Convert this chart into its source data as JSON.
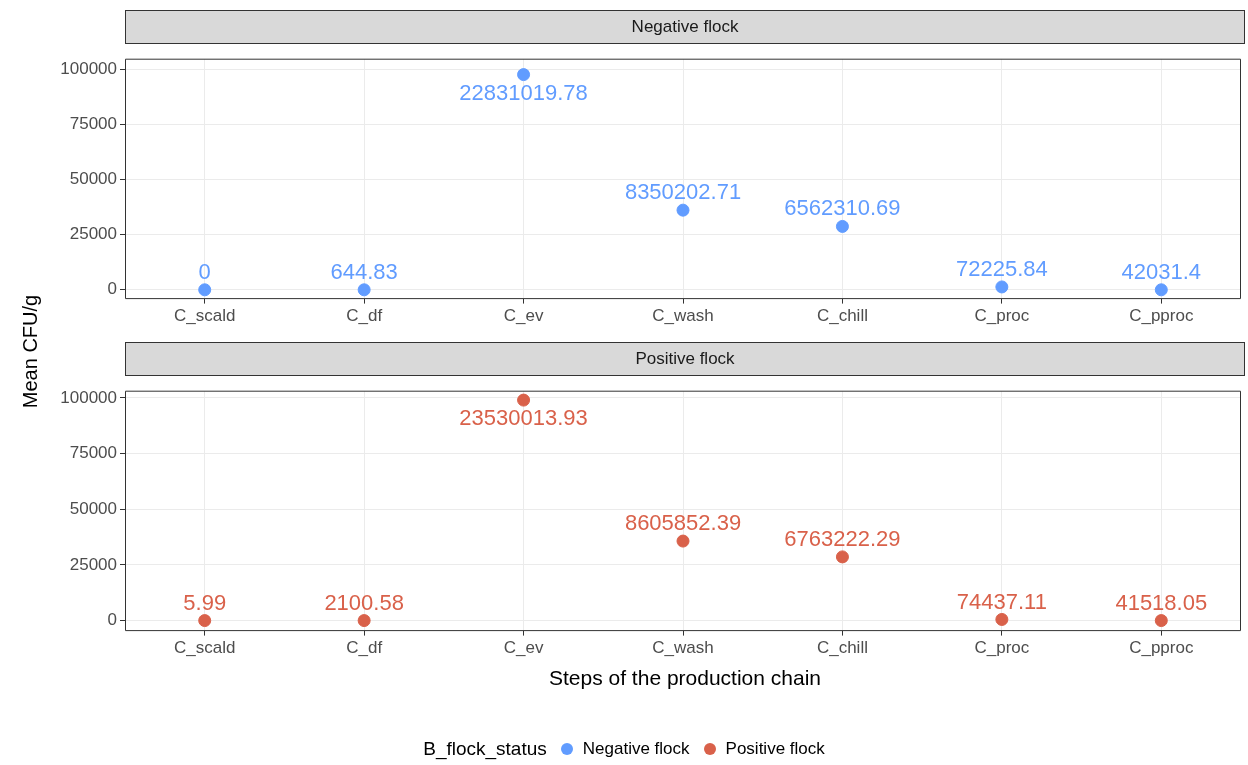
{
  "chart_data": [
    {
      "type": "scatter",
      "title": "Negative flock",
      "ylabel": "Mean CFU/g",
      "legend_title": "B_flock_status",
      "legend": "bottom",
      "grid": true,
      "marker": "circle",
      "categories": [
        "C_scald",
        "C_df",
        "C_ev",
        "C_wash",
        "C_chill",
        "C_proc",
        "C_pproc"
      ],
      "ylim": [
        -4000,
        104800
      ],
      "yticks": [
        0,
        25000,
        50000,
        75000,
        100000
      ],
      "series": [
        {
          "name": "Negative flock",
          "color": "#619cff",
          "values": [
            0,
            0,
            97800,
            36200,
            28800,
            1300,
            0
          ]
        }
      ],
      "annotations": [
        {
          "text": "0",
          "x": "C_scald",
          "y": 0
        },
        {
          "text": "644.83",
          "x": "C_df",
          "y": 0
        },
        {
          "text": "22831019.78",
          "x": "C_ev",
          "y": 97800
        },
        {
          "text": "8350202.71",
          "x": "C_wash",
          "y": 36200
        },
        {
          "text": "6562310.69",
          "x": "C_chill",
          "y": 28800
        },
        {
          "text": "72225.84",
          "x": "C_proc",
          "y": 1300
        },
        {
          "text": "42031.4",
          "x": "C_pproc",
          "y": 0
        }
      ]
    },
    {
      "type": "scatter",
      "title": "Positive flock",
      "xlabel": "Steps of the production chain",
      "legend": "bottom",
      "grid": true,
      "marker": "circle",
      "categories": [
        "C_scald",
        "C_df",
        "C_ev",
        "C_wash",
        "C_chill",
        "C_proc",
        "C_pproc"
      ],
      "ylim": [
        -4500,
        103000
      ],
      "yticks": [
        0,
        25000,
        50000,
        75000,
        100000
      ],
      "series": [
        {
          "name": "Positive flock",
          "color": "#d9614a",
          "values": [
            0,
            0,
            99000,
            35700,
            28600,
            500,
            0
          ]
        }
      ],
      "annotations": [
        {
          "text": "5.99",
          "x": "C_scald",
          "y": 0
        },
        {
          "text": "2100.58",
          "x": "C_df",
          "y": 0
        },
        {
          "text": "23530013.93",
          "x": "C_ev",
          "y": 99000
        },
        {
          "text": "8605852.39",
          "x": "C_wash",
          "y": 35700
        },
        {
          "text": "6763222.29",
          "x": "C_chill",
          "y": 28600
        },
        {
          "text": "74437.11",
          "x": "C_proc",
          "y": 500
        },
        {
          "text": "41518.05",
          "x": "C_pproc",
          "y": 0
        }
      ]
    }
  ]
}
